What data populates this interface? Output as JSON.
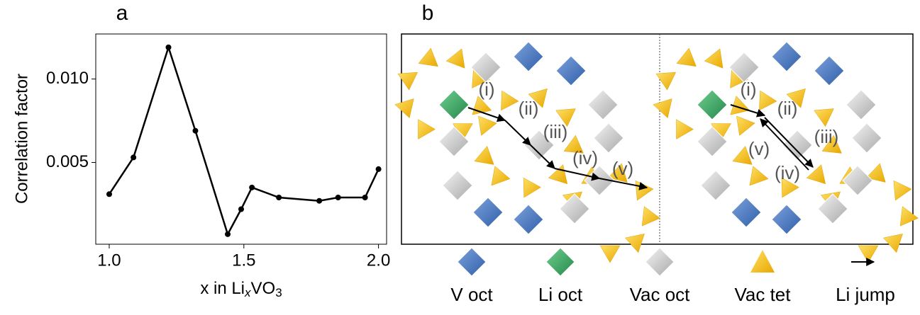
{
  "chart_data": {
    "type": "line",
    "panel_label": "a",
    "ylabel": "Correlation factor",
    "xlabel_parts": [
      "x in Li",
      "x",
      "VO",
      "3"
    ],
    "x": [
      1.0,
      1.09,
      1.22,
      1.32,
      1.44,
      1.49,
      1.53,
      1.63,
      1.78,
      1.85,
      1.95,
      2.0
    ],
    "values": [
      0.0031,
      0.0053,
      0.0119,
      0.0069,
      0.0007,
      0.0022,
      0.0035,
      0.0029,
      0.0027,
      0.0029,
      0.0029,
      0.0046
    ],
    "color": "#000000",
    "xlim": [
      0.95,
      2.03
    ],
    "ylim": [
      0.0001,
      0.0127
    ],
    "xticks": [
      {
        "value": 1.0,
        "label": "1.0"
      },
      1.5,
      {
        "value": 2.0,
        "label": "2.0"
      }
    ],
    "yticks": [
      0.005,
      {
        "value": 0.01,
        "label": "0.010"
      }
    ],
    "grid": false
  },
  "diagram": {
    "panel_label": "b",
    "left_labels": [
      "(i)",
      "(ii)",
      "(iii)",
      "(iv)",
      "(v)"
    ],
    "right_labels": [
      "(i)",
      "(ii)",
      "(iii)",
      "(iv)",
      "(v)"
    ],
    "legend": [
      "V oct",
      "Li oct",
      "Vac oct",
      "Vac tet",
      "Li jump"
    ]
  }
}
